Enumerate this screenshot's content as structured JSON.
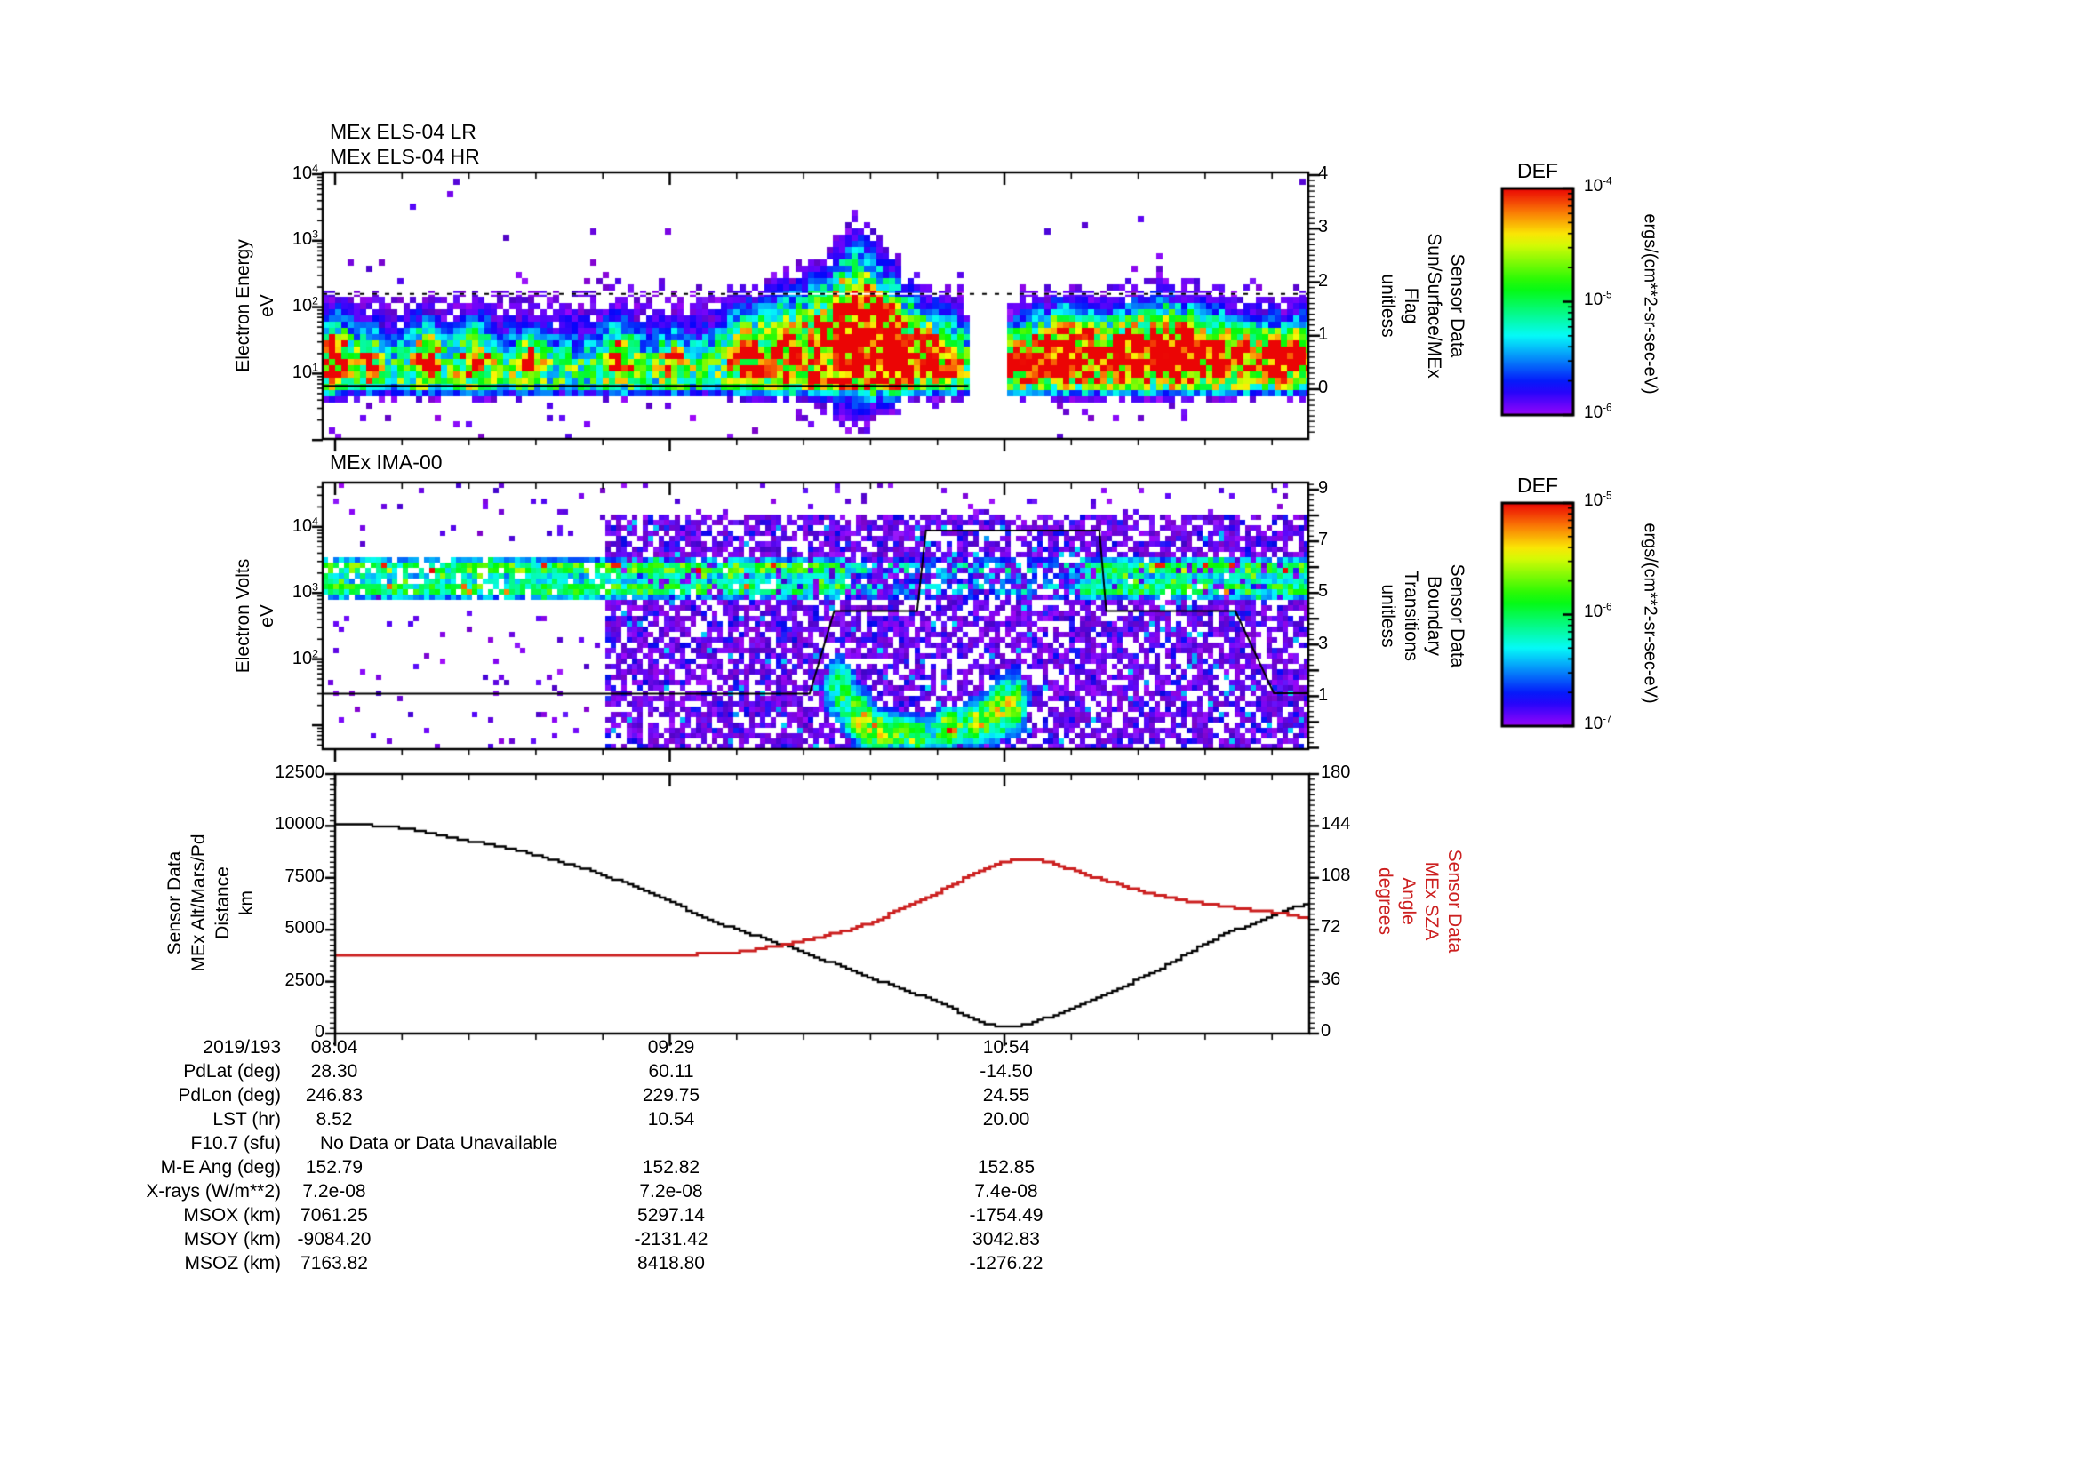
{
  "page": {
    "background": "#ffffff"
  },
  "chart_data": [
    {
      "type": "spectrogram",
      "instrument": "MEx ELS-04",
      "title_lines": [
        "MEx ELS-04 LR",
        "MEx ELS-04 HR"
      ],
      "ylabel_lines": [
        "Electron Energy",
        "eV"
      ],
      "y_log_range": [
        0,
        4
      ],
      "yticks": [
        {
          "b": "10",
          "e": "4"
        },
        {
          "b": "10",
          "e": "3"
        },
        {
          "b": "10",
          "e": "2"
        },
        {
          "b": "10",
          "e": "1"
        }
      ],
      "right_axis": {
        "label_lines": [
          "Sensor Data",
          "Sun/Surface/MEx",
          "Flag",
          "unitless"
        ],
        "range": [
          0,
          4
        ],
        "ticks": [
          "4",
          "3",
          "2",
          "1",
          "0"
        ]
      },
      "x_ticklabels": [
        "08:04",
        "09:29",
        "10:54"
      ],
      "colorbar": {
        "title": "DEF",
        "unit": "ergs/(cm**2-sr-sec-eV)",
        "log_range": [
          -6,
          -4
        ],
        "ticks": [
          {
            "b": "10",
            "e": "-4"
          },
          {
            "b": "10",
            "e": "-5"
          },
          {
            "b": "10",
            "e": "-6"
          }
        ]
      },
      "render": {
        "seed": 1337,
        "cell": 7,
        "gap": [
          0.657,
          0.696
        ],
        "band": [
          [
            1.02,
            0.3,
            0.62
          ],
          [
            1.3,
            0.62,
            0.25
          ]
        ],
        "plumes": [
          [
            0.012,
            0.012,
            1.3,
            0.35,
            0.9
          ],
          [
            0.05,
            0.008,
            1.2,
            0.25,
            0.6
          ],
          [
            0.105,
            0.01,
            1.3,
            0.3,
            0.8
          ],
          [
            0.155,
            0.01,
            1.3,
            0.32,
            0.85
          ],
          [
            0.21,
            0.008,
            1.25,
            0.27,
            0.7
          ],
          [
            0.3,
            0.01,
            1.28,
            0.3,
            0.75
          ],
          [
            0.355,
            0.008,
            1.2,
            0.25,
            0.65
          ],
          [
            0.43,
            0.016,
            1.4,
            0.38,
            0.8
          ],
          [
            0.47,
            0.016,
            1.5,
            0.45,
            0.85
          ],
          [
            0.505,
            0.012,
            1.6,
            0.55,
            1.0
          ],
          [
            0.527,
            0.007,
            1.7,
            0.65,
            1.3
          ],
          [
            0.543,
            0.007,
            1.75,
            0.68,
            1.45
          ],
          [
            0.558,
            0.007,
            1.7,
            0.62,
            1.4
          ],
          [
            0.574,
            0.007,
            1.6,
            0.55,
            1.25
          ],
          [
            0.59,
            0.01,
            1.5,
            0.45,
            0.95
          ],
          [
            0.615,
            0.012,
            1.4,
            0.38,
            0.85
          ],
          [
            0.64,
            0.008,
            1.3,
            0.3,
            0.75
          ],
          [
            0.705,
            0.01,
            1.25,
            0.3,
            0.75
          ],
          [
            0.73,
            0.012,
            1.35,
            0.32,
            1.0
          ],
          [
            0.752,
            0.01,
            1.4,
            0.35,
            1.3
          ],
          [
            0.775,
            0.01,
            1.38,
            0.33,
            1.1
          ],
          [
            0.8,
            0.012,
            1.35,
            0.33,
            1.0
          ],
          [
            0.825,
            0.01,
            1.4,
            0.35,
            1.25
          ],
          [
            0.852,
            0.012,
            1.45,
            0.38,
            1.35
          ],
          [
            0.878,
            0.01,
            1.4,
            0.35,
            1.25
          ],
          [
            0.905,
            0.012,
            1.38,
            0.33,
            1.1
          ],
          [
            0.935,
            0.012,
            1.32,
            0.3,
            0.95
          ],
          [
            0.965,
            0.012,
            1.3,
            0.3,
            0.9
          ],
          [
            0.99,
            0.01,
            1.32,
            0.3,
            1.0
          ]
        ],
        "flag_dashed_value": 1.78,
        "flag_solid_value": 0.06,
        "flag_solid_end_frac": 0.655
      }
    },
    {
      "type": "spectrogram",
      "instrument": "MEx IMA-00",
      "title_lines": [
        "MEx IMA-00"
      ],
      "ylabel_lines": [
        "Electron Volts",
        "eV"
      ],
      "y_log_range": [
        0.64,
        4.67
      ],
      "yticks": [
        {
          "b": "10",
          "e": "4"
        },
        {
          "b": "10",
          "e": "3"
        },
        {
          "b": "10",
          "e": "2"
        }
      ],
      "right_axis": {
        "label_lines": [
          "Sensor Data",
          "Boundary",
          "Transitions",
          "unitless"
        ],
        "range": [
          0,
          9
        ],
        "ticks": [
          "9",
          "7",
          "5",
          "3",
          "1"
        ]
      },
      "x_ticklabels": [
        "08:04",
        "09:29",
        "10:54"
      ],
      "colorbar": {
        "title": "DEF",
        "unit": "ergs/(cm**2-sr-sec-eV)",
        "log_range": [
          -7,
          -5
        ],
        "ticks": [
          {
            "b": "10",
            "e": "-5"
          },
          {
            "b": "10",
            "e": "-6"
          },
          {
            "b": "10",
            "e": "-7"
          }
        ]
      },
      "render": {
        "seed": 4242,
        "cell": 6,
        "sparse_end": 0.285,
        "bands": [
          [
            3.38,
            0.1,
            1.05
          ],
          [
            3.06,
            0.11,
            0.95
          ]
        ],
        "blobs": [
          [
            0.525,
            0.012,
            1.55,
            0.33,
            0.9
          ],
          [
            0.545,
            0.01,
            1.1,
            0.25,
            1.1
          ],
          [
            0.567,
            0.012,
            0.9,
            0.2,
            1.35
          ],
          [
            0.6,
            0.012,
            0.85,
            0.2,
            1.2
          ],
          [
            0.635,
            0.01,
            0.95,
            0.2,
            1.4
          ],
          [
            0.665,
            0.012,
            1.05,
            0.25,
            1.15
          ],
          [
            0.688,
            0.01,
            1.25,
            0.3,
            1.0
          ],
          [
            0.705,
            0.008,
            1.35,
            0.3,
            0.9
          ]
        ],
        "boundary_line": [
          [
            0,
            1.1
          ],
          [
            0.494,
            1.1
          ],
          [
            0.519,
            4.3
          ],
          [
            0.603,
            4.3
          ],
          [
            0.612,
            7.42
          ],
          [
            0.788,
            7.42
          ],
          [
            0.795,
            4.3
          ],
          [
            0.926,
            4.3
          ],
          [
            0.965,
            1.12
          ],
          [
            1,
            1.12
          ]
        ]
      }
    },
    {
      "type": "line",
      "panel": "distance-sza",
      "left_axis": {
        "label_lines": [
          "Sensor Data",
          "MEx Alt/Mars/Pd",
          "Distance",
          "km"
        ],
        "range": [
          0,
          12500
        ],
        "ticks": [
          "12500",
          "10000",
          "7500",
          "5000",
          "2500",
          "0"
        ]
      },
      "right_axis": {
        "label_lines": [
          "Sensor Data",
          "MEx SZA",
          "Angle",
          "degrees"
        ],
        "range": [
          0,
          180
        ],
        "ticks": [
          "180",
          "144",
          "108",
          "72",
          "36",
          "0"
        ],
        "color": "#cc2020"
      },
      "date_label": "2019/193",
      "x_ticklabels": [
        "08:04",
        "09:29",
        "10:54"
      ],
      "series": [
        {
          "name": "MEx Alt/Mars/Pd Distance",
          "axis": "left",
          "color": "#000000",
          "points": [
            [
              0,
              10120
            ],
            [
              0.06,
              9960
            ],
            [
              0.124,
              9400
            ],
            [
              0.19,
              8760
            ],
            [
              0.254,
              7960
            ],
            [
              0.319,
              6880
            ],
            [
              0.384,
              5440
            ],
            [
              0.459,
              4260
            ],
            [
              0.515,
              3280
            ],
            [
              0.58,
              2130
            ],
            [
              0.62,
              1500
            ],
            [
              0.645,
              900
            ],
            [
              0.665,
              500
            ],
            [
              0.687,
              300
            ],
            [
              0.7,
              350
            ],
            [
              0.72,
              600
            ],
            [
              0.775,
              1560
            ],
            [
              0.84,
              3000
            ],
            [
              0.905,
              4650
            ],
            [
              0.97,
              5880
            ],
            [
              1,
              6300
            ]
          ]
        },
        {
          "name": "MEx SZA Angle",
          "axis": "right",
          "color": "#cc2020",
          "points": [
            [
              0,
              54.6
            ],
            [
              0.12,
              54.6
            ],
            [
              0.13,
              53.8
            ],
            [
              0.29,
              53.8
            ],
            [
              0.3,
              54.3
            ],
            [
              0.36,
              54.9
            ],
            [
              0.4,
              55.6
            ],
            [
              0.43,
              58.0
            ],
            [
              0.459,
              61.8
            ],
            [
              0.49,
              66.0
            ],
            [
              0.52,
              71.0
            ],
            [
              0.55,
              77.0
            ],
            [
              0.58,
              86.7
            ],
            [
              0.61,
              95.0
            ],
            [
              0.64,
              106.0
            ],
            [
              0.664,
              113.5
            ],
            [
              0.68,
              118.0
            ],
            [
              0.695,
              120.6
            ],
            [
              0.72,
              120.6
            ],
            [
              0.74,
              117.0
            ],
            [
              0.77,
              110.0
            ],
            [
              0.8,
              104.0
            ],
            [
              0.84,
              96.0
            ],
            [
              0.875,
              91.5
            ],
            [
              0.905,
              88.6
            ],
            [
              0.94,
              85.5
            ],
            [
              0.97,
              83.3
            ],
            [
              1,
              78.9
            ]
          ]
        }
      ]
    }
  ],
  "table": {
    "rows": [
      {
        "label": "2019/193",
        "c1": "08:04",
        "c2": "09:29",
        "c3": "10:54"
      },
      {
        "label": "PdLat (deg)",
        "c1": "28.30",
        "c2": "60.11",
        "c3": "-14.50"
      },
      {
        "label": "PdLon (deg)",
        "c1": "246.83",
        "c2": "229.75",
        "c3": "24.55"
      },
      {
        "label": "LST (hr)",
        "c1": "8.52",
        "c2": "10.54",
        "c3": "20.00"
      },
      {
        "label": "F10.7 (sfu)",
        "c1": "No Data or Data Unavailable",
        "c2": "",
        "c3": ""
      },
      {
        "label": "M-E Ang (deg)",
        "c1": "152.79",
        "c2": "152.82",
        "c3": "152.85"
      },
      {
        "label": "X-rays (W/m**2)",
        "c1": "7.2e-08",
        "c2": "7.2e-08",
        "c3": "7.4e-08"
      },
      {
        "label": "MSOX (km)",
        "c1": "7061.25",
        "c2": "5297.14",
        "c3": "-1754.49"
      },
      {
        "label": "MSOY (km)",
        "c1": "-9084.20",
        "c2": "-2131.42",
        "c3": "3042.83"
      },
      {
        "label": "MSOZ (km)",
        "c1": "7163.82",
        "c2": "8418.80",
        "c3": "-1276.22"
      }
    ]
  }
}
